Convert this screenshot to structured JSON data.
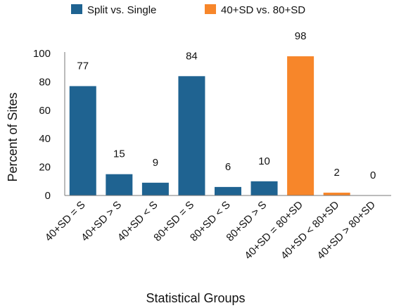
{
  "chart_data": {
    "type": "bar",
    "xlabel": "Statistical Groups",
    "ylabel": "Percent of Sites",
    "ylim": [
      0,
      100
    ],
    "yticks": [
      "0",
      "20",
      "40",
      "60",
      "80",
      "100"
    ],
    "grid": false,
    "legend_placement": "top",
    "series": [
      {
        "name": "Split vs. Single",
        "color": "#1f6391"
      },
      {
        "name": "40+SD vs. 80+SD",
        "color": "#f7862a"
      }
    ],
    "categories": [
      "40+SD = S",
      "40+SD > S",
      "40+SD < S",
      "80+SD = S",
      "80+SD < S",
      "80+SD > S",
      "40+SD = 80+SD",
      "40+SD < 80+SD",
      "40+SD > 80+SD"
    ],
    "values": [
      77,
      15,
      9,
      84,
      6,
      10,
      98,
      2,
      0
    ],
    "bar_series": [
      0,
      0,
      0,
      0,
      0,
      0,
      1,
      1,
      1
    ],
    "data_labels": [
      "77",
      "15",
      "9",
      "84",
      "6",
      "10",
      "98",
      "2",
      "0"
    ]
  }
}
